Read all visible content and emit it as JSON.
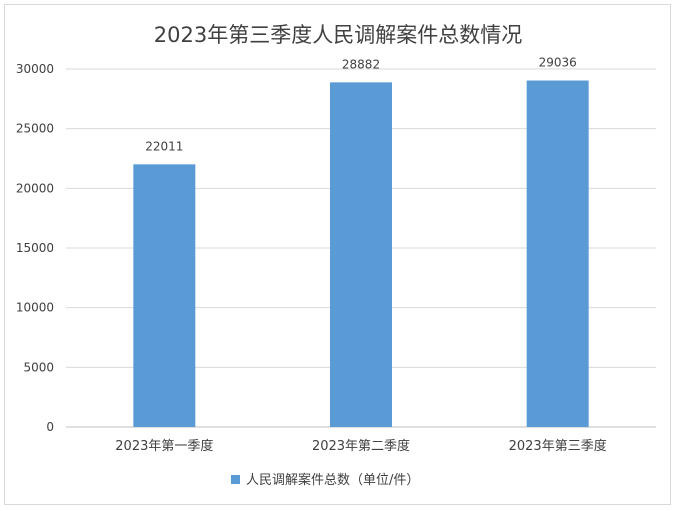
{
  "chart_data": {
    "type": "bar",
    "title": "2023年第三季度人民调解案件总数情况",
    "categories": [
      "2023年第一季度",
      "2023年第二季度",
      "2023年第三季度"
    ],
    "series": [
      {
        "name": "人民调解案件总数（单位/件）",
        "values": [
          22011,
          28882,
          29036
        ],
        "color": "#5b9bd5"
      }
    ],
    "xlabel": "",
    "ylabel": "",
    "ylim": [
      0,
      30000
    ],
    "yticks": [
      0,
      5000,
      10000,
      15000,
      20000,
      25000,
      30000
    ],
    "grid": true,
    "legend": "bottom"
  }
}
